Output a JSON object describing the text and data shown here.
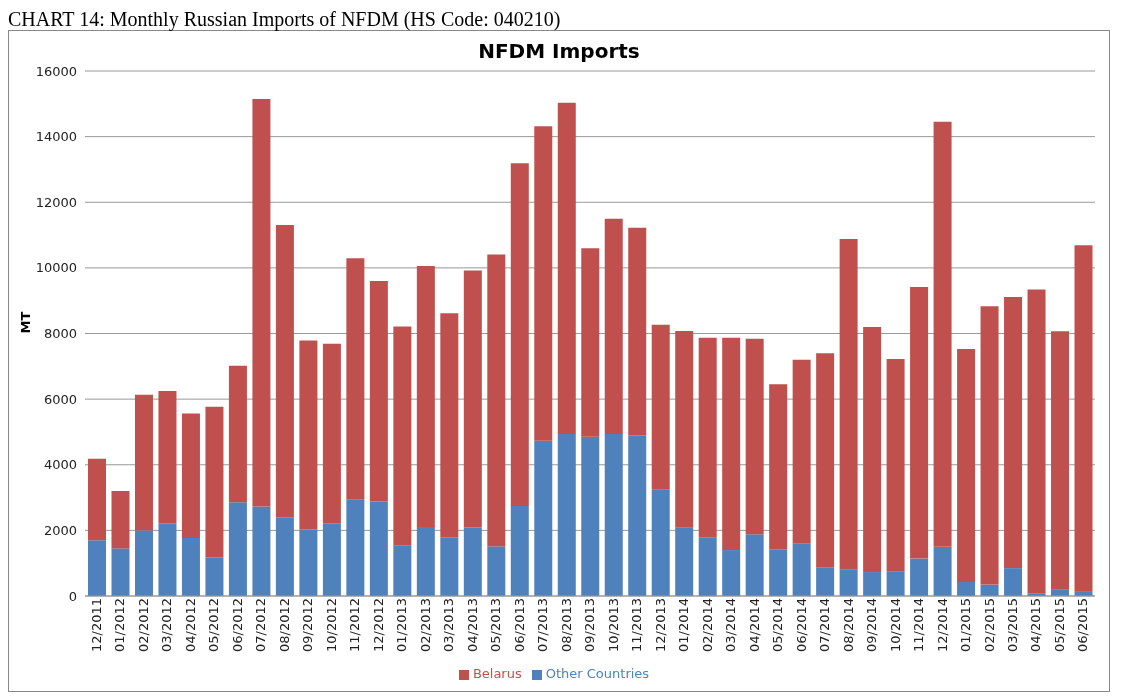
{
  "chart_data": {
    "type": "bar",
    "title": "NFDM Imports",
    "annotations": [
      "CHART 14: Monthly Russian Imports of NFDM (HS Code: 040210)"
    ],
    "ylabel": "MT",
    "stacked": true,
    "grid": "y",
    "legend": "bottom",
    "ylim": [
      0,
      16000
    ],
    "yticks": [
      0,
      2000,
      4000,
      6000,
      8000,
      10000,
      12000,
      14000,
      16000
    ],
    "categories": [
      "12/2011",
      "01/2012",
      "02/2012",
      "03/2012",
      "04/2012",
      "05/2012",
      "06/2012",
      "07/2012",
      "08/2012",
      "09/2012",
      "10/2012",
      "11/2012",
      "12/2012",
      "01/2013",
      "02/2013",
      "03/2013",
      "04/2013",
      "05/2013",
      "06/2013",
      "07/2013",
      "08/2013",
      "09/2013",
      "10/2013",
      "11/2013",
      "12/2013",
      "01/2014",
      "02/2014",
      "03/2014",
      "04/2014",
      "05/2014",
      "06/2014",
      "07/2014",
      "08/2014",
      "09/2014",
      "10/2014",
      "11/2014",
      "12/2014",
      "01/2015",
      "02/2015",
      "03/2015",
      "04/2015",
      "05/2015",
      "06/2015"
    ],
    "series": [
      {
        "name": "Other Countries",
        "color": "#4f81bd",
        "values": [
          1700,
          1450,
          2000,
          2220,
          1770,
          1180,
          2860,
          2730,
          2400,
          2030,
          2220,
          2930,
          2880,
          1530,
          2100,
          1790,
          2090,
          1510,
          2740,
          4730,
          4940,
          4850,
          4940,
          4900,
          3240,
          2080,
          1790,
          1400,
          1880,
          1420,
          1590,
          860,
          800,
          730,
          740,
          1140,
          1500,
          430,
          350,
          850,
          80,
          210,
          150
        ]
      },
      {
        "name": "Belarus",
        "color": "#c0504d",
        "values": [
          2480,
          1750,
          4130,
          4030,
          3790,
          4590,
          4160,
          12420,
          8910,
          5760,
          5470,
          7360,
          6720,
          6680,
          7960,
          6830,
          7830,
          8900,
          10450,
          9590,
          10090,
          5750,
          6560,
          6320,
          5030,
          6000,
          6080,
          6470,
          5960,
          5030,
          5610,
          6540,
          10080,
          7470,
          6480,
          8280,
          12950,
          7100,
          8480,
          8260,
          9260,
          7860,
          10540
        ]
      }
    ]
  }
}
